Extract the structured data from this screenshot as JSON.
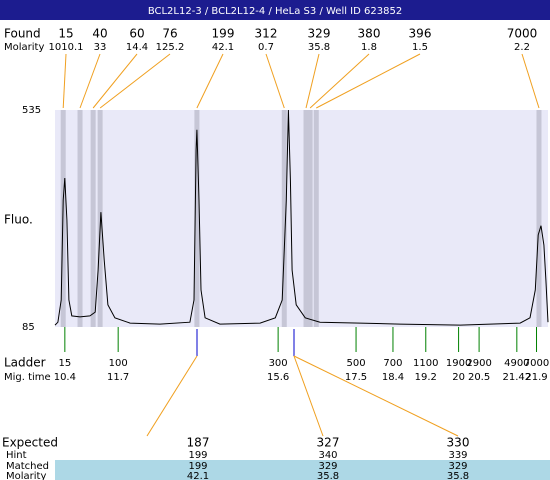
{
  "header": {
    "title": "BCL2L12-3 / BCL2L12-4 / HeLa S3 / Well ID 623852"
  },
  "found": {
    "label": "Found",
    "molarity_label": "Molarity",
    "peaks": [
      {
        "size": 15,
        "molarity": 1010.1,
        "time": 10.36
      },
      {
        "size": 40,
        "molarity": 33,
        "time": 10.77
      },
      {
        "size": 60,
        "molarity": 14.4,
        "time": 11.09
      },
      {
        "size": 76,
        "molarity": 125.2,
        "time": 11.26
      },
      {
        "size": 199,
        "molarity": 42.1,
        "time": 13.62
      },
      {
        "size": 312,
        "molarity": 0.7,
        "time": 15.75
      },
      {
        "size": 329,
        "molarity": 35.8,
        "time": 16.28
      },
      {
        "size": 380,
        "molarity": 1.8,
        "time": 16.38
      },
      {
        "size": 396,
        "molarity": 1.5,
        "time": 16.53
      },
      {
        "size": 7000,
        "molarity": 2.2,
        "time": 21.96
      }
    ]
  },
  "chart_data": {
    "type": "electropherogram",
    "y_label": "Fluo.",
    "ylim": [
      85,
      535
    ],
    "yticks": [
      85,
      535
    ],
    "xlim": [
      10.16,
      22.18
    ],
    "color": "#000000",
    "x": [
      10.16,
      10.23,
      10.31,
      10.36,
      10.4,
      10.45,
      10.5,
      10.57,
      10.77,
      11.01,
      11.14,
      11.21,
      11.28,
      11.36,
      11.45,
      11.62,
      11.99,
      12.72,
      13.45,
      13.55,
      13.6,
      13.62,
      13.67,
      13.72,
      13.82,
      14.18,
      15.16,
      15.53,
      15.7,
      15.8,
      15.85,
      15.9,
      15.94,
      16.04,
      16.26,
      16.62,
      17.6,
      18.57,
      20.04,
      21.5,
      21.74,
      21.87,
      21.94,
      22.01,
      22.08,
      22.13,
      22.18
    ],
    "values": [
      89,
      95,
      141,
      348,
      394,
      307,
      141,
      108,
      106,
      108,
      116,
      203,
      323,
      224,
      131,
      104,
      93,
      91,
      95,
      141,
      452,
      494,
      348,
      162,
      104,
      91,
      93,
      104,
      141,
      348,
      535,
      390,
      203,
      131,
      104,
      95,
      93,
      91,
      89,
      93,
      104,
      162,
      276,
      295,
      255,
      182,
      95
    ]
  },
  "ladder": {
    "label": "Ladder",
    "time_label": "Mig. time",
    "sizes": [
      15,
      100,
      300,
      500,
      700,
      1100,
      1900,
      2900,
      4900,
      7000
    ],
    "times": [
      10.4,
      11.7,
      15.6,
      17.5,
      18.4,
      19.2,
      20,
      20.5,
      21.42,
      21.9
    ]
  },
  "expected": {
    "labels": [
      "Expected",
      "Hint",
      "Matched",
      "Molarity"
    ],
    "columns": [
      {
        "expected": 187,
        "hint": 199,
        "matched": 199,
        "molarity": 42.1
      },
      {
        "expected": 327,
        "hint": 340,
        "matched": 329,
        "molarity": 35.8
      },
      {
        "expected": 330,
        "hint": 339,
        "matched": 329,
        "molarity": 35.8
      }
    ]
  }
}
